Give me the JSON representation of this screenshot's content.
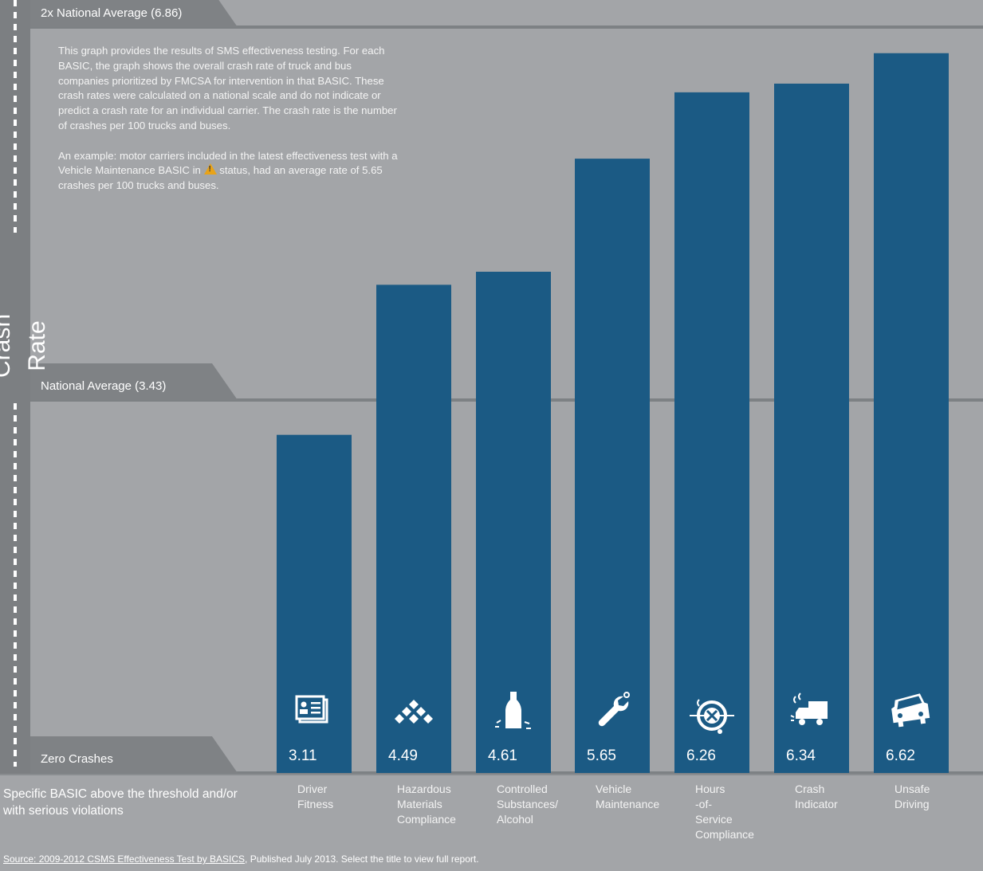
{
  "chart_data": {
    "type": "bar",
    "ylabel": "Crash Rate",
    "categories": [
      "Driver\nFitness",
      "Hazardous\nMaterials\nCompliance",
      "Controlled\nSubstances/\nAlcohol",
      "Vehicle\nMaintenance",
      "Hours\n-of-\nService\nCompliance",
      "Crash\nIndicator",
      "Unsafe\nDriving"
    ],
    "values": [
      3.11,
      4.49,
      4.61,
      5.65,
      6.26,
      6.34,
      6.62
    ],
    "value_labels": [
      "3.11",
      "4.49",
      "4.61",
      "5.65",
      "6.26",
      "6.34",
      "6.62"
    ],
    "icons": [
      "driver-license-icon",
      "hazmat-diamonds-icon",
      "bottle-icon",
      "wrench-icon",
      "clock-steering-icon",
      "crashed-truck-icon",
      "car-front-icon"
    ],
    "reference_lines": [
      {
        "label": "2x National Average (6.86)",
        "value": 6.86
      },
      {
        "label": "National Average (3.43)",
        "value": 3.43
      },
      {
        "label": "Zero Crashes",
        "value": 0
      }
    ],
    "ylim": [
      0,
      6.86
    ],
    "grid": false,
    "colors": {
      "bar": "#1b5a84",
      "background": "#a3a5a8",
      "line": "#7d8184",
      "tab": "#7f8285"
    }
  },
  "description": {
    "para1": "This graph provides the results of SMS effectiveness testing. For each BASIC, the graph shows the overall crash rate of truck and bus companies prioritized by FMCSA for intervention in that BASIC. These crash rates were calculated on a national scale and do not indicate or predict a crash rate for an individual carrier. The crash rate is the number of crashes per 100 trucks and buses.",
    "para2_before": "An example:  motor carriers included in the latest effectiveness test with a Vehicle Maintenance BASIC in",
    "para2_after": "status, had an average rate of 5.65 crashes per 100 trucks and buses.",
    "warning_icon": "warning-triangle-icon"
  },
  "footer": {
    "note": "Specific BASIC above the threshold and/or with serious violations",
    "source_link": "Source: 2009-2012 CSMS Effectiveness Test by BASICS",
    "source_rest": ", Published July 2013. Select the title to view full report."
  }
}
